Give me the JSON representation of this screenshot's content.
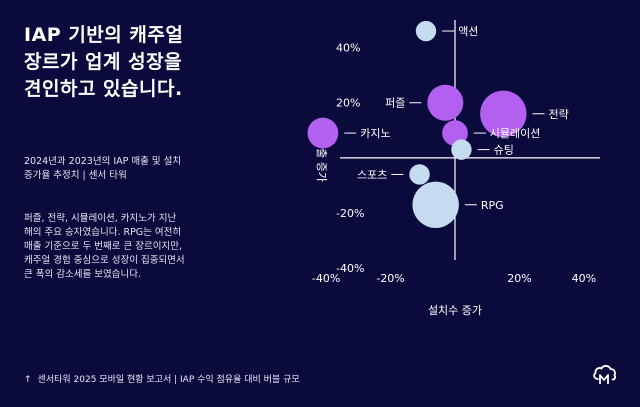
{
  "headline": {
    "line1": "IAP 기반의 캐주얼",
    "line2": "장르가 업계 성장을",
    "line3": "견인하고 있습니다."
  },
  "subtitle": {
    "line1": "2024년과 2023년의 IAP 매출 및 설치",
    "line2": "증가율 추정치 | 센서 타워"
  },
  "body": {
    "line1": "퍼즐, 전략, 시뮬레이션, 카지노가 지난",
    "line2": "해의 주요 승자였습니다. RPG는 여전히",
    "line3": "매출 기준으로 두 번째로 큰 장르이지만,",
    "line4": "캐주얼 경험 중심으로 성장이 집중되면서",
    "line5": "큰 폭의 감소세를 보였습니다."
  },
  "footer": {
    "arrow": "↑",
    "text": "센서타워 2025 모바일 현황 보고서 | IAP 수익 점유율 대비 버블 규모"
  },
  "colors": {
    "background": "#0b0a3c",
    "purple": "#b360f0",
    "light_blue": "#c5dcf0",
    "axis": "#ffffff"
  },
  "chart_data": {
    "type": "scatter",
    "subtype": "bubble",
    "xlabel": "설치수 증가",
    "ylabel": "매출 증가",
    "xlim": [
      -45,
      45
    ],
    "ylim": [
      -45,
      50
    ],
    "x_ticks": [
      -40,
      -20,
      20,
      40
    ],
    "x_tick_labels": [
      "-40%",
      "-20%",
      "20%",
      "40%"
    ],
    "y_ticks": [
      40,
      20,
      -20,
      -40
    ],
    "y_tick_labels": [
      "40%",
      "20%",
      "-20%",
      "-40%"
    ],
    "points": [
      {
        "label": "액션",
        "x": -9,
        "y": 46,
        "size": 2,
        "color": "#c5dcf0",
        "label_side": "right"
      },
      {
        "label": "퍼즐",
        "x": -3,
        "y": 20,
        "size": 5,
        "color": "#b360f0",
        "label_side": "left"
      },
      {
        "label": "전략",
        "x": 15,
        "y": 16,
        "size": 7,
        "color": "#b360f0",
        "label_side": "right"
      },
      {
        "label": "카지노",
        "x": -41,
        "y": 9,
        "size": 4,
        "color": "#b360f0",
        "label_side": "right"
      },
      {
        "label": "시뮬레이션",
        "x": 0,
        "y": 9,
        "size": 3,
        "color": "#b360f0",
        "label_side": "right"
      },
      {
        "label": "슈팅",
        "x": 2,
        "y": 3,
        "size": 2,
        "color": "#c5dcf0",
        "label_side": "right"
      },
      {
        "label": "스포츠",
        "x": -11,
        "y": -6,
        "size": 2,
        "color": "#c5dcf0",
        "label_side": "left"
      },
      {
        "label": "RPG",
        "x": -6,
        "y": -17,
        "size": 7,
        "color": "#c5dcf0",
        "label_side": "right"
      }
    ]
  }
}
